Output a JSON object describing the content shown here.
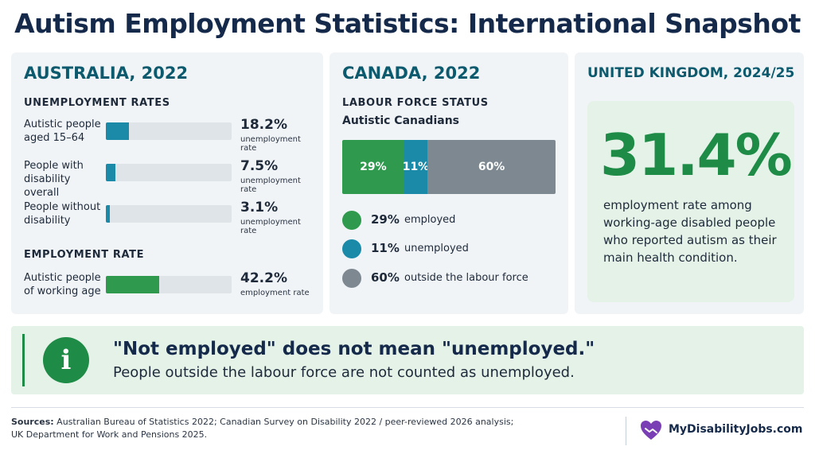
{
  "title": "Autism Employment Statistics: International Snapshot",
  "colors": {
    "teal": "#1a8aa8",
    "green": "#2f9a4e",
    "grey": "#7d8891",
    "track": "#dfe4e9",
    "accent_green": "#1e8c46",
    "heading_teal": "#0c5a6e"
  },
  "australia": {
    "title": "AUSTRALIA, 2022",
    "unemployment_label": "UNEMPLOYMENT RATES",
    "employment_label": "EMPLOYMENT RATE",
    "unemployment_rows": [
      {
        "label": "Autistic people aged 15–64",
        "value": "18.2%",
        "sub": "unemployment rate"
      },
      {
        "label": "People with disability overall",
        "value": "7.5%",
        "sub": "unemployment rate"
      },
      {
        "label": "People without disability",
        "value": "3.1%",
        "sub": "unemployment rate"
      }
    ],
    "employment_rows": [
      {
        "label": "Autistic people of working age",
        "value": "42.2%",
        "sub": "employment rate"
      }
    ]
  },
  "canada": {
    "title": "CANADA, 2022",
    "section_label": "LABOUR FORCE STATUS",
    "subtitle": "Autistic Canadians",
    "segments": [
      {
        "label": "29%",
        "legend_value": "29%",
        "legend_text": "employed",
        "color": "#2f9a4e"
      },
      {
        "label": "11%",
        "legend_value": "11%",
        "legend_text": "unemployed",
        "color": "#1a8aa8"
      },
      {
        "label": "60%",
        "legend_value": "60%",
        "legend_text": "outside the labour force",
        "color": "#7d8891"
      }
    ]
  },
  "uk": {
    "title": "UNITED KINGDOM, 2024/25",
    "big_value": "31.4%",
    "description": "employment rate among working-age disabled people who reported autism as their main health condition."
  },
  "note": {
    "icon": "info-icon",
    "heading": "\"Not employed\" does not mean \"unemployed.\"",
    "body": "People outside the labour force are not counted as unemployed."
  },
  "footer": {
    "sources_label": "Sources:",
    "sources_text": "Australian Bureau of Statistics 2022; Canadian Survey on Disability 2022 / peer-reviewed 2026 analysis; UK Department for Work and Pensions 2025.",
    "brand": "MyDisabilityJobs.com",
    "brand_icon": "heart-hands-icon"
  },
  "chart_data": [
    {
      "type": "bar",
      "title": "AUSTRALIA, 2022",
      "orientation": "horizontal",
      "categories": [
        "Autistic people aged 15–64",
        "People with disability overall",
        "People without disability",
        "Autistic people of working age"
      ],
      "series": [
        {
          "name": "unemployment rate",
          "values": [
            18.2,
            7.5,
            3.1,
            null
          ]
        },
        {
          "name": "employment rate",
          "values": [
            null,
            null,
            null,
            42.2
          ]
        }
      ],
      "xlim": [
        0,
        100
      ]
    },
    {
      "type": "bar",
      "title": "CANADA, 2022",
      "stacked": true,
      "categories": [
        "Autistic Canadians"
      ],
      "series": [
        {
          "name": "employed",
          "values": [
            29
          ]
        },
        {
          "name": "unemployed",
          "values": [
            11
          ]
        },
        {
          "name": "outside the labour force",
          "values": [
            60
          ]
        }
      ]
    },
    {
      "type": "table",
      "title": "UNITED KINGDOM, 2024/25",
      "values": [
        31.4
      ]
    }
  ]
}
